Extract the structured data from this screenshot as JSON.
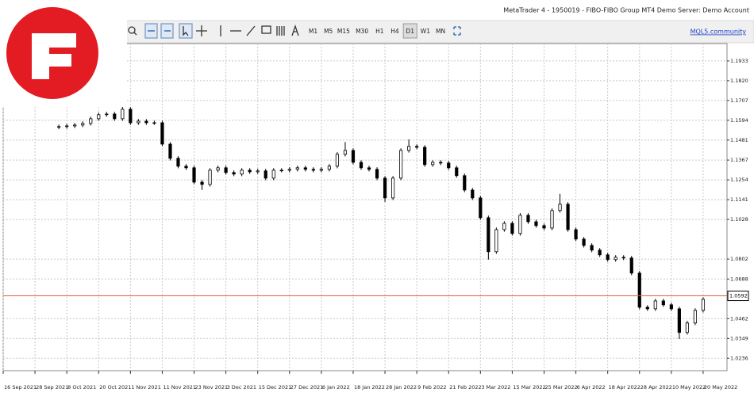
{
  "window": {
    "title": "MetaTrader 4 - 1950019 - FIBO-FIBO Group MT4 Demo Server: Demo Account"
  },
  "toolbar": {
    "timeframes": [
      "M1",
      "M5",
      "M15",
      "M30",
      "H1",
      "H4",
      "D1",
      "W1",
      "MN"
    ],
    "active": "D1",
    "link": "MQL5.community"
  },
  "chart_data": {
    "type": "candlestick",
    "open": [
      1.1555,
      1.1558,
      1.1562,
      1.1567,
      1.1576,
      1.1603,
      1.1626,
      1.163,
      1.1603,
      1.1657,
      1.158,
      1.1589,
      1.158,
      1.158,
      1.1458,
      1.1377,
      1.1332,
      1.1323,
      1.1241,
      1.1228,
      1.1309,
      1.1323,
      1.1296,
      1.1287,
      1.1309,
      1.13,
      1.1305,
      1.1264,
      1.1309,
      1.1309,
      1.1314,
      1.1323,
      1.1314,
      1.1309,
      1.1314,
      1.1332,
      1.14,
      1.1422,
      1.1354,
      1.1323,
      1.1314,
      1.1264,
      1.1151,
      1.1264,
      1.1422,
      1.1445,
      1.144,
      1.1341,
      1.1354,
      1.135,
      1.1323,
      1.1278,
      1.1196,
      1.1151,
      1.1038,
      1.0844,
      1.097,
      1.1006,
      1.0948,
      1.1052,
      1.1015,
      1.0993,
      1.0979,
      1.1079,
      1.1115,
      1.097,
      1.0916,
      1.088,
      1.0853,
      1.0826,
      1.0799,
      1.0812,
      1.0808,
      1.0722,
      1.0527,
      1.0518,
      1.0563,
      1.0541,
      1.0518,
      1.0383,
      1.0437,
      1.0509
    ],
    "high": [
      1.157,
      1.1574,
      1.1579,
      1.1588,
      1.1615,
      1.1638,
      1.1642,
      1.1642,
      1.1693,
      1.1669,
      1.1601,
      1.1601,
      1.1592,
      1.1592,
      1.147,
      1.1389,
      1.1344,
      1.1335,
      1.1253,
      1.1321,
      1.1335,
      1.1335,
      1.1308,
      1.1321,
      1.1321,
      1.1317,
      1.1317,
      1.1321,
      1.1321,
      1.1326,
      1.1335,
      1.1335,
      1.1326,
      1.1326,
      1.1344,
      1.1412,
      1.147,
      1.1434,
      1.1366,
      1.1335,
      1.1326,
      1.1276,
      1.1276,
      1.1434,
      1.1485,
      1.1457,
      1.1452,
      1.1366,
      1.1366,
      1.1362,
      1.1335,
      1.129,
      1.1208,
      1.1163,
      1.105,
      1.0982,
      1.1018,
      1.1018,
      1.1064,
      1.1064,
      1.1027,
      1.1005,
      1.1091,
      1.1174,
      1.1127,
      1.0982,
      1.0928,
      1.0892,
      1.0865,
      1.0838,
      1.0824,
      1.0824,
      1.082,
      1.0734,
      1.0539,
      1.0575,
      1.0575,
      1.0553,
      1.053,
      1.0449,
      1.0521,
      1.0584
    ],
    "low": [
      1.1543,
      1.1546,
      1.155,
      1.1555,
      1.1564,
      1.1591,
      1.1614,
      1.1591,
      1.1591,
      1.1568,
      1.1568,
      1.1568,
      1.1568,
      1.1446,
      1.1365,
      1.132,
      1.1311,
      1.1229,
      1.1196,
      1.1216,
      1.1297,
      1.1284,
      1.1275,
      1.1275,
      1.1288,
      1.1288,
      1.1252,
      1.1252,
      1.1297,
      1.1297,
      1.1302,
      1.1302,
      1.1297,
      1.1297,
      1.1302,
      1.132,
      1.1388,
      1.1342,
      1.1311,
      1.1302,
      1.1252,
      1.1128,
      1.1139,
      1.1252,
      1.141,
      1.1428,
      1.1329,
      1.1329,
      1.1338,
      1.1311,
      1.1266,
      1.1184,
      1.1139,
      1.1026,
      1.0799,
      1.0832,
      1.0958,
      1.0936,
      1.0936,
      1.1003,
      1.0981,
      1.0967,
      1.0967,
      1.1067,
      1.0958,
      1.0904,
      1.0868,
      1.0841,
      1.0814,
      1.0787,
      1.0787,
      1.0796,
      1.071,
      1.0515,
      1.0506,
      1.0506,
      1.0529,
      1.0506,
      1.0346,
      1.0371,
      1.0425,
      1.0497
    ],
    "close": [
      1.1558,
      1.1562,
      1.1567,
      1.1576,
      1.1603,
      1.1626,
      1.163,
      1.1603,
      1.1657,
      1.158,
      1.1589,
      1.158,
      1.158,
      1.1458,
      1.1377,
      1.1332,
      1.1323,
      1.1241,
      1.1228,
      1.1309,
      1.1323,
      1.1296,
      1.1287,
      1.1309,
      1.13,
      1.1305,
      1.1264,
      1.1309,
      1.1309,
      1.1314,
      1.1323,
      1.1314,
      1.1309,
      1.1314,
      1.1332,
      1.14,
      1.1422,
      1.1354,
      1.1323,
      1.1314,
      1.1264,
      1.1151,
      1.1264,
      1.1422,
      1.1445,
      1.144,
      1.1341,
      1.1354,
      1.135,
      1.1323,
      1.1278,
      1.1196,
      1.1151,
      1.1038,
      1.0844,
      1.097,
      1.1006,
      1.0948,
      1.1052,
      1.1015,
      1.0993,
      1.0979,
      1.1079,
      1.1115,
      1.097,
      1.0916,
      1.088,
      1.0853,
      1.0826,
      1.0799,
      1.0812,
      1.0808,
      1.0722,
      1.0527,
      1.0518,
      1.0563,
      1.0541,
      1.0518,
      1.0383,
      1.0437,
      1.0509,
      1.0572
    ],
    "xlim": [
      -7,
      84
    ],
    "xticks": [
      {
        "value": -7,
        "label": "16 Sep 2021"
      },
      {
        "value": -3,
        "label": "28 Sep 2021"
      },
      {
        "value": 1,
        "label": "8 Oct 2021"
      },
      {
        "value": 5,
        "label": "20 Oct 2021"
      },
      {
        "value": 9,
        "label": "1 Nov 2021"
      },
      {
        "value": 13,
        "label": "11 Nov 2021"
      },
      {
        "value": 17,
        "label": "23 Nov 2021"
      },
      {
        "value": 21,
        "label": "3 Dec 2021"
      },
      {
        "value": 25,
        "label": "15 Dec 2021"
      },
      {
        "value": 29,
        "label": "27 Dec 2021"
      },
      {
        "value": 33,
        "label": "6 Jan 2022"
      },
      {
        "value": 37,
        "label": "18 Jan 2022"
      },
      {
        "value": 41,
        "label": "28 Jan 2022"
      },
      {
        "value": 45,
        "label": "9 Feb 2022"
      },
      {
        "value": 49,
        "label": "21 Feb 2022"
      },
      {
        "value": 53,
        "label": "3 Mar 2022"
      },
      {
        "value": 57,
        "label": "15 Mar 2022"
      },
      {
        "value": 61,
        "label": "25 Mar 2022"
      },
      {
        "value": 65,
        "label": "6 Apr 2022"
      },
      {
        "value": 69,
        "label": "18 Apr 2022"
      },
      {
        "value": 73,
        "label": "28 Apr 2022"
      },
      {
        "value": 77,
        "label": "10 May 2022"
      },
      {
        "value": 81,
        "label": "20 May 2022"
      }
    ],
    "ylim": [
      1.0165,
      1.2032
    ],
    "yticks": [
      1.1933,
      {
        "value": 1.182,
        "label": "1.1820"
      },
      1.1707,
      1.1594,
      1.1481,
      1.1367,
      1.1254,
      1.1141,
      1.1028,
      1.0802,
      1.0688,
      1.0462,
      1.0349,
      1.0236
    ],
    "grid": true,
    "up_color": "#ffffff",
    "down_color": "#000000",
    "price_line": {
      "value": 1.0592,
      "color": "#e0603a"
    }
  }
}
